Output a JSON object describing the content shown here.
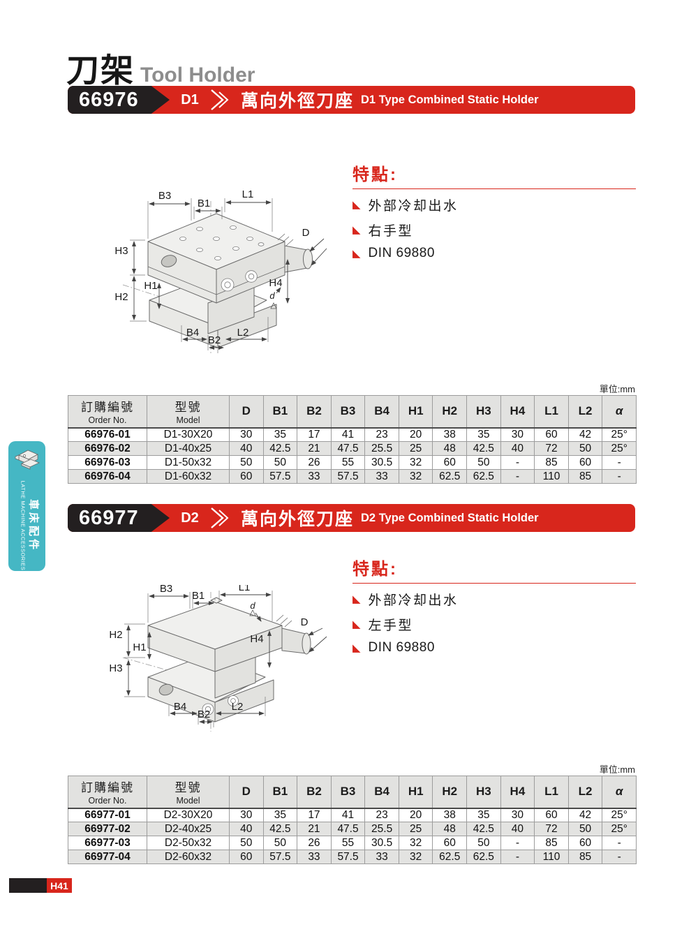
{
  "page": {
    "title_zh": "刀架",
    "title_en": "Tool Holder",
    "unit_label": "單位:mm",
    "page_number": "H41"
  },
  "sidebar": {
    "label_zh": "車床配件",
    "label_en": "LATHE MACHINE ACCESSORIES"
  },
  "sections": [
    {
      "order_no": "66976",
      "type_code": "D1",
      "banner_title_zh": "萬向外徑刀座",
      "banner_title_en": "D1 Type Combined Static Holder",
      "features_heading": "特點:",
      "features": [
        "外部冷却出水",
        "右手型",
        "DIN 69880"
      ],
      "table": {
        "col1_zh": "訂購編號",
        "col1_en": "Order No.",
        "col2_zh": "型號",
        "col2_en": "Model",
        "dim_headers": [
          "D",
          "B1",
          "B2",
          "B3",
          "B4",
          "H1",
          "H2",
          "H3",
          "H4",
          "L1",
          "L2",
          "α"
        ],
        "rows": [
          [
            "66976-01",
            "D1-30X20",
            "30",
            "35",
            "17",
            "41",
            "23",
            "20",
            "38",
            "35",
            "30",
            "60",
            "42",
            "25°"
          ],
          [
            "66976-02",
            "D1-40x25",
            "40",
            "42.5",
            "21",
            "47.5",
            "25.5",
            "25",
            "48",
            "42.5",
            "40",
            "72",
            "50",
            "25°"
          ],
          [
            "66976-03",
            "D1-50x32",
            "50",
            "50",
            "26",
            "55",
            "30.5",
            "32",
            "60",
            "50",
            "-",
            "85",
            "60",
            "-"
          ],
          [
            "66976-04",
            "D1-60x32",
            "60",
            "57.5",
            "33",
            "57.5",
            "33",
            "32",
            "62.5",
            "62.5",
            "-",
            "110",
            "85",
            "-"
          ]
        ]
      }
    },
    {
      "order_no": "66977",
      "type_code": "D2",
      "banner_title_zh": "萬向外徑刀座",
      "banner_title_en": "D2 Type Combined Static Holder",
      "features_heading": "特點:",
      "features": [
        "外部冷却出水",
        "左手型",
        "DIN 69880"
      ],
      "table": {
        "col1_zh": "訂購編號",
        "col1_en": "Order No.",
        "col2_zh": "型號",
        "col2_en": "Model",
        "dim_headers": [
          "D",
          "B1",
          "B2",
          "B3",
          "B4",
          "H1",
          "H2",
          "H3",
          "H4",
          "L1",
          "L2",
          "α"
        ],
        "rows": [
          [
            "66977-01",
            "D2-30X20",
            "30",
            "35",
            "17",
            "41",
            "23",
            "20",
            "38",
            "35",
            "30",
            "60",
            "42",
            "25°"
          ],
          [
            "66977-02",
            "D2-40x25",
            "40",
            "42.5",
            "21",
            "47.5",
            "25.5",
            "25",
            "48",
            "42.5",
            "40",
            "72",
            "50",
            "25°"
          ],
          [
            "66977-03",
            "D2-50x32",
            "50",
            "50",
            "26",
            "55",
            "30.5",
            "32",
            "60",
            "50",
            "-",
            "85",
            "60",
            "-"
          ],
          [
            "66977-04",
            "D2-60x32",
            "60",
            "57.5",
            "33",
            "57.5",
            "33",
            "32",
            "62.5",
            "62.5",
            "-",
            "110",
            "85",
            "-"
          ]
        ]
      }
    }
  ],
  "drawings": [
    {
      "labels": {
        "b3": "B3",
        "b1": "B1",
        "l1": "L1",
        "h3": "H3",
        "h2": "H2",
        "h1": "H1",
        "h4": "H4",
        "d_big": "D",
        "d_small": "d",
        "b4": "B4",
        "b2": "B2",
        "l2": "L2"
      }
    },
    {
      "labels": {
        "b3": "B3",
        "b1": "B1",
        "l1": "L1",
        "h3": "H3",
        "h2": "H2",
        "h1": "H1",
        "h4": "H4",
        "d_big": "D",
        "d_small": "d",
        "b4": "B4",
        "b2": "B2",
        "l2": "L2"
      }
    }
  ],
  "colors": {
    "accent_red": "#d8261c",
    "banner_black": "#231f20",
    "sidebar_teal": "#45b7c4",
    "table_gray": "#e3e3e1"
  }
}
